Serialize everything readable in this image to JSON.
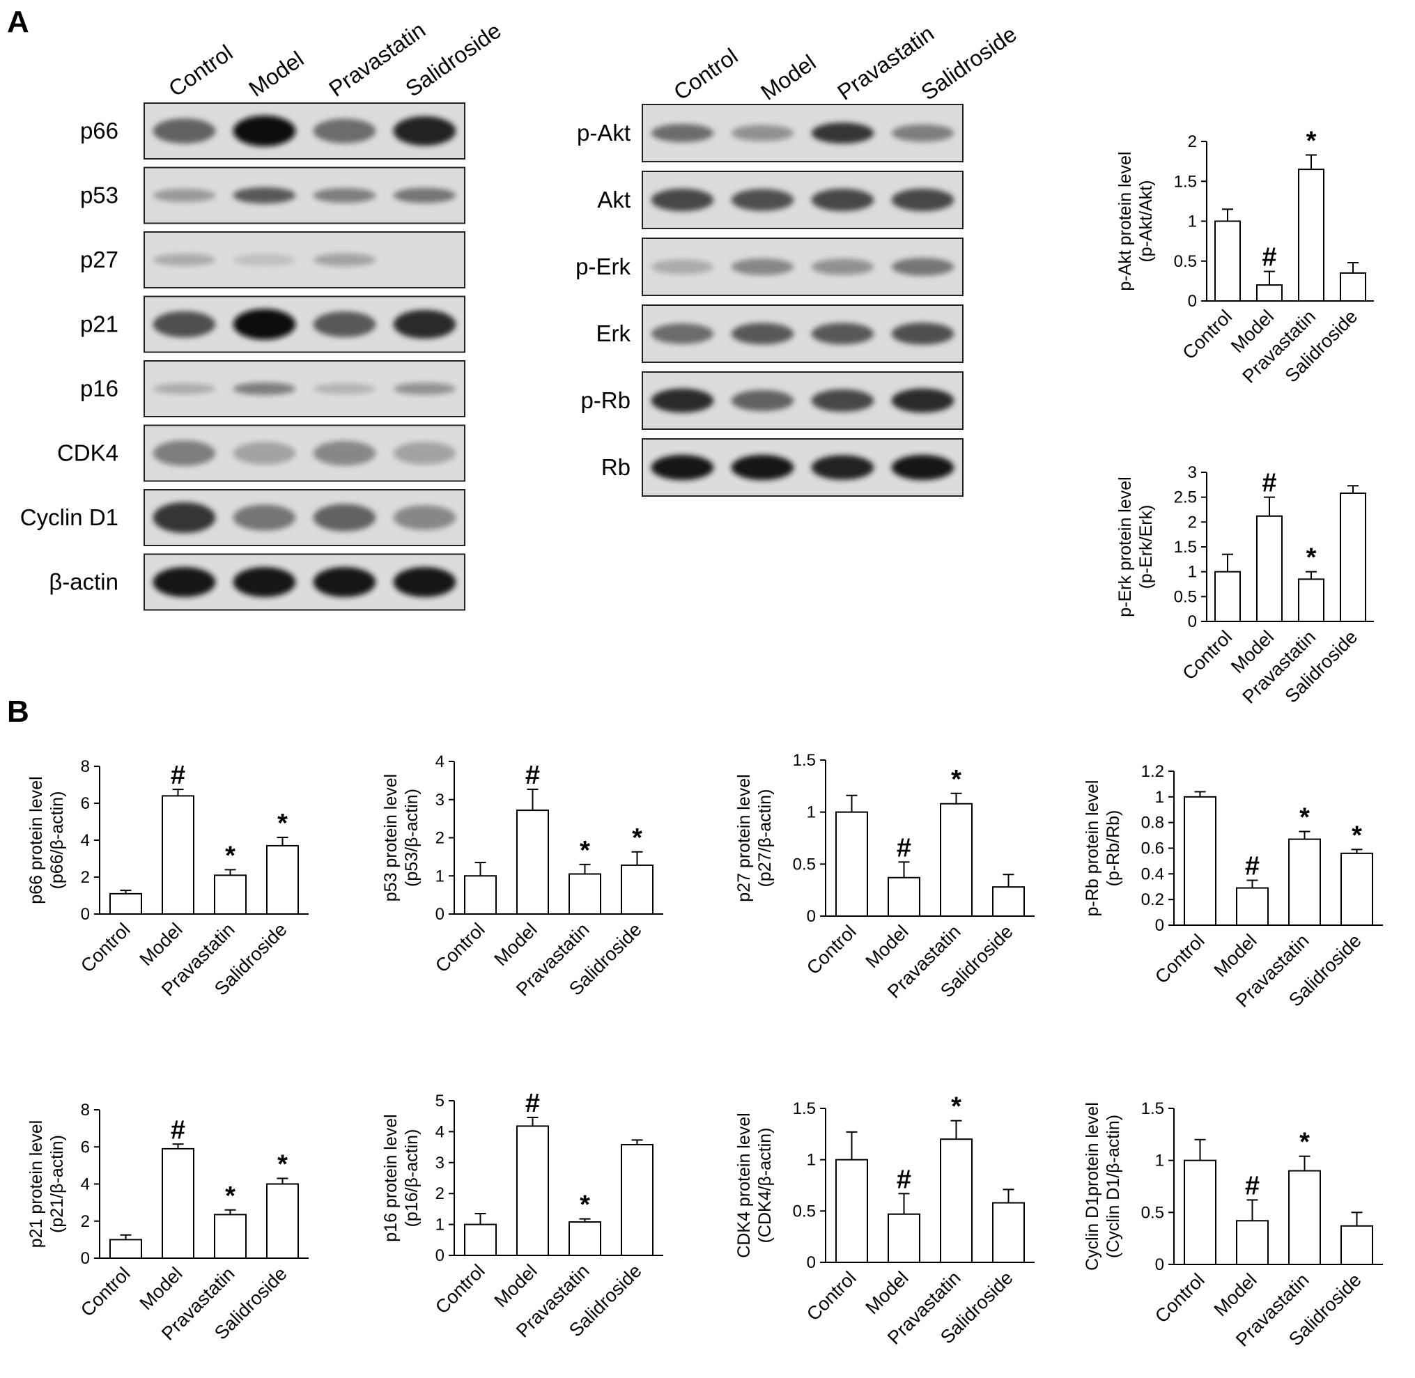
{
  "panel_labels": [
    "A",
    "B"
  ],
  "lanes": [
    "Control",
    "Model",
    "Pravastatin",
    "Salidroside"
  ],
  "blots_left": [
    {
      "name": "p66",
      "bands": [
        0.55,
        1.0,
        0.5,
        0.9
      ],
      "band_height": 0.55
    },
    {
      "name": "p53",
      "bands": [
        0.25,
        0.6,
        0.4,
        0.45
      ],
      "band_height": 0.35
    },
    {
      "name": "p27",
      "bands": [
        0.15,
        0.05,
        0.2,
        0.0
      ],
      "band_height": 0.35
    },
    {
      "name": "p21",
      "bands": [
        0.65,
        1.0,
        0.6,
        0.85
      ],
      "band_height": 0.55
    },
    {
      "name": "p16",
      "bands": [
        0.15,
        0.4,
        0.12,
        0.3
      ],
      "band_height": 0.3
    },
    {
      "name": "CDK4",
      "bands": [
        0.4,
        0.2,
        0.35,
        0.2
      ],
      "band_height": 0.6
    },
    {
      "name": "Cyclin D1",
      "bands": [
        0.8,
        0.45,
        0.55,
        0.35
      ],
      "band_height": 0.6
    },
    {
      "name": "β-actin",
      "bands": [
        0.95,
        0.95,
        0.95,
        0.95
      ],
      "band_height": 0.55
    }
  ],
  "blots_right": [
    {
      "name": "p-Akt",
      "bands": [
        0.5,
        0.3,
        0.8,
        0.4
      ],
      "band_height": 0.4
    },
    {
      "name": "Akt",
      "bands": [
        0.7,
        0.65,
        0.7,
        0.7
      ],
      "band_height": 0.45
    },
    {
      "name": "p-Erk",
      "bands": [
        0.15,
        0.35,
        0.3,
        0.45
      ],
      "band_height": 0.4
    },
    {
      "name": "Erk",
      "bands": [
        0.5,
        0.6,
        0.6,
        0.65
      ],
      "band_height": 0.45
    },
    {
      "name": "p-Rb",
      "bands": [
        0.85,
        0.55,
        0.7,
        0.85
      ],
      "band_height": 0.45
    },
    {
      "name": "Rb",
      "bands": [
        0.95,
        0.95,
        0.9,
        0.95
      ],
      "band_height": 0.45
    }
  ],
  "chart_data": [
    {
      "type": "bar",
      "id": "p-akt",
      "categories": [
        "Control",
        "Model",
        "Pravastatin",
        "Salidroside"
      ],
      "values": [
        1.0,
        0.2,
        1.65,
        0.35
      ],
      "errors": [
        0.15,
        0.17,
        0.18,
        0.13
      ],
      "ylabel": [
        "p-Akt protein level",
        "(p-Akt/Akt)"
      ],
      "ylim": [
        0,
        2
      ],
      "yticks": [
        "0",
        "0.5",
        "1",
        "1.5",
        "2"
      ],
      "annotations": [
        "",
        "#",
        "*",
        ""
      ]
    },
    {
      "type": "bar",
      "id": "p-erk",
      "categories": [
        "Control",
        "Model",
        "Pravastatin",
        "Salidroside"
      ],
      "values": [
        1.0,
        2.12,
        0.85,
        2.58
      ],
      "errors": [
        0.35,
        0.38,
        0.15,
        0.15
      ],
      "ylabel": [
        "p-Erk protein level",
        "(p-Erk/Erk)"
      ],
      "ylim": [
        0,
        3
      ],
      "yticks": [
        "0",
        "0.5",
        "1",
        "1.5",
        "2",
        "2.5",
        "3"
      ],
      "annotations": [
        "",
        "#",
        "*",
        ""
      ]
    },
    {
      "type": "bar",
      "id": "p66",
      "categories": [
        "Control",
        "Model",
        "Pravastatin",
        "Salidroside"
      ],
      "values": [
        1.1,
        6.4,
        2.1,
        3.7
      ],
      "errors": [
        0.18,
        0.35,
        0.3,
        0.45
      ],
      "ylabel": [
        "p66 protein level",
        "(p66/β-actin)"
      ],
      "ylim": [
        0,
        8
      ],
      "yticks": [
        "0",
        "2",
        "4",
        "6",
        "8"
      ],
      "annotations": [
        "",
        "#",
        "*",
        "*"
      ]
    },
    {
      "type": "bar",
      "id": "p53",
      "categories": [
        "Control",
        "Model",
        "Pravastatin",
        "Salidroside"
      ],
      "values": [
        1.0,
        2.72,
        1.05,
        1.28
      ],
      "errors": [
        0.35,
        0.55,
        0.25,
        0.35
      ],
      "ylabel": [
        "p53 protein level",
        "(p53/β-actin)"
      ],
      "ylim": [
        0,
        4
      ],
      "yticks": [
        "0",
        "1",
        "2",
        "3",
        "4"
      ],
      "annotations": [
        "",
        "#",
        "*",
        "*"
      ]
    },
    {
      "type": "bar",
      "id": "p27",
      "categories": [
        "Control",
        "Model",
        "Pravastatin",
        "Salidroside"
      ],
      "values": [
        1.0,
        0.37,
        1.08,
        0.28
      ],
      "errors": [
        0.16,
        0.15,
        0.1,
        0.12
      ],
      "ylabel": [
        "p27 protein level",
        "(p27/β-actin)"
      ],
      "ylim": [
        0,
        1.5
      ],
      "yticks": [
        "0",
        "0.5",
        "1",
        "1.5"
      ],
      "annotations": [
        "",
        "#",
        "*",
        ""
      ]
    },
    {
      "type": "bar",
      "id": "p-rb",
      "categories": [
        "Control",
        "Model",
        "Pravastatin",
        "Salidroside"
      ],
      "values": [
        1.0,
        0.29,
        0.67,
        0.56
      ],
      "errors": [
        0.04,
        0.06,
        0.06,
        0.03
      ],
      "ylabel": [
        "p-Rb protein level",
        "(p-Rb/Rb)"
      ],
      "ylim": [
        0,
        1.2
      ],
      "yticks": [
        "0",
        "0.2",
        "0.4",
        "0.6",
        "0.8",
        "1",
        "1.2"
      ],
      "annotations": [
        "",
        "#",
        "*",
        "*"
      ]
    },
    {
      "type": "bar",
      "id": "p21",
      "categories": [
        "Control",
        "Model",
        "Pravastatin",
        "Salidroside"
      ],
      "values": [
        1.0,
        5.9,
        2.35,
        4.0
      ],
      "errors": [
        0.25,
        0.25,
        0.25,
        0.3
      ],
      "ylabel": [
        "p21 protein level",
        "(p21/β-actin)"
      ],
      "ylim": [
        0,
        8
      ],
      "yticks": [
        "0",
        "2",
        "4",
        "6",
        "8"
      ],
      "annotations": [
        "",
        "#",
        "*",
        "*"
      ]
    },
    {
      "type": "bar",
      "id": "p16",
      "categories": [
        "Control",
        "Model",
        "Pravastatin",
        "Salidroside"
      ],
      "values": [
        1.0,
        4.18,
        1.08,
        3.58
      ],
      "errors": [
        0.35,
        0.28,
        0.1,
        0.15
      ],
      "ylabel": [
        "p16 protein level",
        "(p16/β-actin)"
      ],
      "ylim": [
        0,
        5
      ],
      "yticks": [
        "0",
        "1",
        "2",
        "3",
        "4",
        "5"
      ],
      "annotations": [
        "",
        "#",
        "*",
        ""
      ]
    },
    {
      "type": "bar",
      "id": "cdk4",
      "categories": [
        "Control",
        "Model",
        "Pravastatin",
        "Salidroside"
      ],
      "values": [
        1.0,
        0.47,
        1.2,
        0.58
      ],
      "errors": [
        0.27,
        0.2,
        0.18,
        0.13
      ],
      "ylabel": [
        "CDK4 protein level",
        "(CDK4/β-actin)"
      ],
      "ylim": [
        0,
        1.5
      ],
      "yticks": [
        "0",
        "0.5",
        "1",
        "1.5"
      ],
      "annotations": [
        "",
        "#",
        "*",
        ""
      ]
    },
    {
      "type": "bar",
      "id": "cyclin-d1",
      "categories": [
        "Control",
        "Model",
        "Pravastatin",
        "Salidroside"
      ],
      "values": [
        1.0,
        0.42,
        0.9,
        0.37
      ],
      "errors": [
        0.2,
        0.2,
        0.14,
        0.13
      ],
      "ylabel": [
        "Cyclin D1protein level",
        "(Cyclin D1/β-actin)"
      ],
      "ylim": [
        0,
        1.5
      ],
      "yticks": [
        "0",
        "0.5",
        "1",
        "1.5"
      ],
      "annotations": [
        "",
        "#",
        "*",
        ""
      ]
    }
  ]
}
